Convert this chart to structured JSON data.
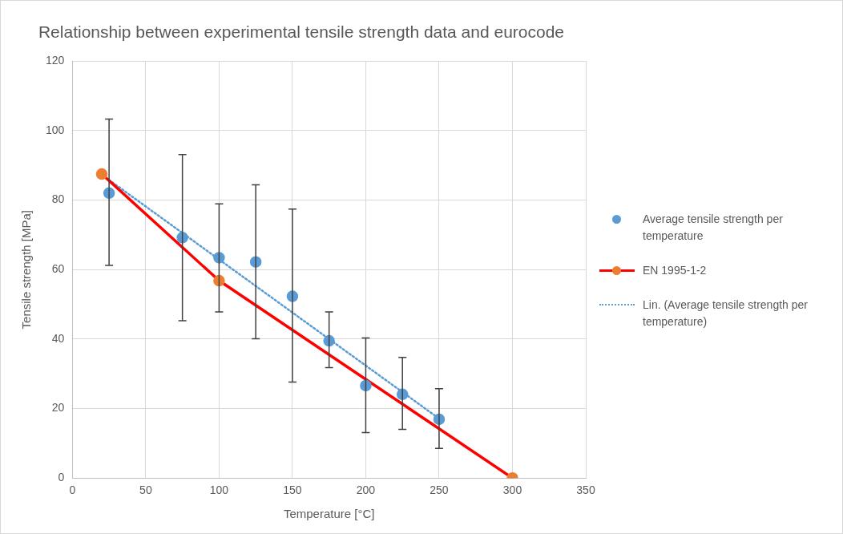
{
  "chart_data": {
    "type": "scatter",
    "title": "Relationship between experimental tensile strength data and eurocode",
    "xlabel": "Temperature [°C]",
    "ylabel": "Tensile strength [MPa]",
    "xlim": [
      0,
      350
    ],
    "xticks": [
      0,
      50,
      100,
      150,
      200,
      250,
      300,
      350
    ],
    "ylim": [
      0,
      120
    ],
    "yticks": [
      0,
      20,
      40,
      60,
      80,
      100,
      120
    ],
    "grid": true,
    "legend": "right",
    "marker": "circle",
    "series": [
      {
        "name": "Average tensile strength per temperature",
        "color": "#5b9bd5",
        "x": [
          25,
          75,
          100,
          125,
          150,
          175,
          200,
          225,
          250
        ],
        "values": [
          82,
          69.2,
          63.4,
          62.2,
          52.3,
          39.5,
          26.6,
          24.1,
          16.9
        ],
        "errors": [
          [
            61.2,
            103.3
          ],
          [
            45.3,
            93.1
          ],
          [
            47.8,
            78.9
          ],
          [
            40.1,
            84.4
          ],
          [
            27.6,
            77.4
          ],
          [
            31.8,
            47.8
          ],
          [
            13.1,
            40.3
          ],
          [
            14,
            34.7
          ],
          [
            8.5,
            25.7
          ]
        ]
      },
      {
        "name": "EN 1995-1-2",
        "type": "line",
        "color": "#ff0000",
        "colors": [
          "#ed7d31",
          "#ed7d31",
          "#ed7d31"
        ],
        "x": [
          20,
          100,
          300
        ],
        "values": [
          87.5,
          56.8,
          0
        ],
        "line_style": "solid"
      },
      {
        "name": "Lin. (Average tensile strength per temperature)",
        "type": "line",
        "color": "#5b9bd5",
        "x": [
          25,
          250
        ],
        "values": [
          85.8,
          17.1
        ],
        "line_style": "dotted",
        "marker": "none"
      }
    ]
  }
}
